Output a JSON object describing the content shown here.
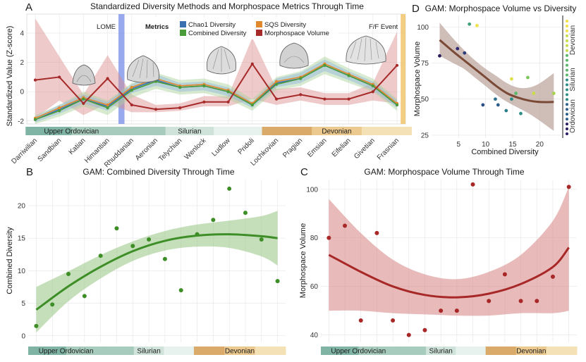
{
  "periods": [
    {
      "name": "Upper Ordovician",
      "color": "#7fb3a3"
    },
    {
      "name": "Silurian",
      "color": "#bcd8cf"
    },
    {
      "name": "Devonian",
      "color": "#d9aa6a"
    }
  ],
  "chart_data": [
    {
      "id": "A",
      "panel_label": "A",
      "type": "line",
      "title": "Standardized Diversity Methods and Morphospace Metrics Through Time",
      "xlabel": "",
      "ylabel": "Standardized Value (Z-score)",
      "ylim": [
        -2.2,
        5.3
      ],
      "yticks": [
        -2,
        0,
        2,
        4
      ],
      "grid": true,
      "legend_title": "Metrics",
      "legend_position": "top-center",
      "categories": [
        "Darriwilian",
        "Sandbian",
        "Katian",
        "Himantian",
        "Rhuddanian",
        "Aeronian",
        "Telychian",
        "Wenlock",
        "Ludlow",
        "Pridoli",
        "Lochkovian",
        "Pragian",
        "Emsian",
        "Eifelian",
        "Givetian",
        "Frasnian"
      ],
      "series": [
        {
          "name": "Chao1 Diversity",
          "color": "#3a6fb0",
          "values": [
            -1.9,
            -1.2,
            -0.5,
            -1.0,
            0.2,
            0.8,
            0.3,
            0.4,
            0.0,
            -0.9,
            0.6,
            0.9,
            1.8,
            1.1,
            0.4,
            -0.9
          ],
          "band_lower": [
            -2.1,
            -1.5,
            -0.8,
            -1.3,
            -0.1,
            0.4,
            0.0,
            0.1,
            -0.3,
            -1.1,
            0.3,
            0.6,
            1.4,
            0.8,
            0.1,
            -1.1
          ],
          "band_upper": [
            -1.7,
            -0.9,
            -0.2,
            -0.7,
            0.5,
            1.2,
            0.6,
            0.7,
            0.3,
            -0.7,
            0.9,
            1.3,
            2.2,
            1.4,
            0.7,
            -0.6
          ]
        },
        {
          "name": "SQS Diversity",
          "color": "#e0892c",
          "values": [
            -1.8,
            -1.1,
            -0.4,
            -0.9,
            0.3,
            0.9,
            0.4,
            0.5,
            0.1,
            -0.8,
            0.7,
            1.0,
            1.9,
            1.2,
            0.5,
            -0.8
          ]
        },
        {
          "name": "Combined Diversity",
          "color": "#4a9b3a",
          "values": [
            -1.9,
            -1.3,
            -0.5,
            -1.1,
            0.1,
            0.7,
            0.3,
            0.4,
            0.0,
            -0.9,
            0.5,
            0.9,
            1.8,
            1.1,
            0.4,
            -0.9
          ],
          "band_lower": [
            -2.2,
            -1.7,
            -1.0,
            -1.6,
            -0.4,
            0.2,
            -0.2,
            -0.1,
            -0.5,
            -1.3,
            0.1,
            0.4,
            1.2,
            0.6,
            0.0,
            -1.3
          ],
          "band_upper": [
            -1.6,
            -0.9,
            0.0,
            -0.6,
            0.6,
            1.3,
            0.8,
            0.9,
            0.5,
            -0.5,
            1.0,
            1.4,
            2.4,
            1.6,
            0.9,
            -0.5
          ]
        },
        {
          "name": "Morphospace Volume",
          "color": "#a72a2a",
          "values": [
            0.8,
            1.0,
            -0.8,
            0.9,
            -0.9,
            -1.2,
            -1.1,
            -0.7,
            -0.7,
            1.9,
            -0.5,
            -0.2,
            -0.5,
            -0.5,
            0.0,
            1.8
          ],
          "band_lower": [
            -1.8,
            -0.6,
            -1.6,
            -0.8,
            -1.4,
            -1.4,
            -1.3,
            -1.0,
            -1.0,
            -0.5,
            -0.9,
            -0.6,
            -0.9,
            -0.9,
            -0.6,
            -0.8
          ],
          "band_upper": [
            5.0,
            2.4,
            -0.2,
            2.5,
            -0.2,
            -0.9,
            -0.8,
            -0.3,
            -0.3,
            3.7,
            0.2,
            0.3,
            -0.1,
            -0.1,
            0.6,
            4.1
          ]
        }
      ],
      "annotations": [
        {
          "text": "LOME",
          "color": "#7f94e8",
          "between": [
            3,
            4
          ]
        },
        {
          "text": "F/F Event",
          "color": "#f1c46b",
          "between": [
            15,
            15.4
          ]
        }
      ],
      "period_bands": [
        {
          "period": "Upper Ordovician",
          "from": -0.4,
          "to": 3.4,
          "shades": [
            "#7fb3a3",
            "#a7cbbd"
          ]
        },
        {
          "period": "Silurian",
          "from": 3.4,
          "to": 9.4,
          "shades": [
            "#a7cbbd",
            "#cfe3db",
            "#e7f1ed"
          ]
        },
        {
          "period": "Devonian",
          "from": 9.4,
          "to": 15.6,
          "shades": [
            "#d9aa6a",
            "#ecc98f",
            "#f5e1b6"
          ]
        }
      ]
    },
    {
      "id": "B",
      "panel_label": "B",
      "type": "scatter",
      "title": "GAM: Combined Diversity Through Time",
      "xlabel": "",
      "ylabel": "Combined Diversity",
      "ylim": [
        -1,
        24
      ],
      "yticks": [
        0,
        5,
        10,
        15,
        20
      ],
      "grid": true,
      "point_color": "#3e8e27",
      "smooth_color": "#3e8e27",
      "band_color": "#9cc98a",
      "points": [
        [
          1,
          1.5
        ],
        [
          2,
          4.8
        ],
        [
          3,
          9.5
        ],
        [
          4,
          6.1
        ],
        [
          5,
          12.3
        ],
        [
          6,
          16.5
        ],
        [
          7,
          13.8
        ],
        [
          8,
          14.8
        ],
        [
          9,
          11.8
        ],
        [
          10,
          7.0
        ],
        [
          11,
          15.6
        ],
        [
          12,
          17.8
        ],
        [
          13,
          22.6
        ],
        [
          14,
          18.9
        ],
        [
          15,
          14.8
        ],
        [
          16,
          8.4
        ]
      ],
      "smooth": [
        [
          1,
          4.0
        ],
        [
          3,
          7.6
        ],
        [
          5,
          10.6
        ],
        [
          7,
          13.0
        ],
        [
          9,
          14.6
        ],
        [
          11,
          15.4
        ],
        [
          13,
          15.6
        ],
        [
          15,
          15.3
        ],
        [
          16,
          15.0
        ]
      ],
      "band_lower": [
        [
          1,
          0.5
        ],
        [
          3,
          5.3
        ],
        [
          5,
          8.8
        ],
        [
          7,
          11.5
        ],
        [
          9,
          13.1
        ],
        [
          11,
          13.7
        ],
        [
          13,
          13.5
        ],
        [
          15,
          12.2
        ],
        [
          16,
          10.8
        ]
      ],
      "band_upper": [
        [
          1,
          7.5
        ],
        [
          3,
          9.9
        ],
        [
          5,
          12.4
        ],
        [
          7,
          14.5
        ],
        [
          9,
          16.1
        ],
        [
          11,
          17.1
        ],
        [
          13,
          17.7
        ],
        [
          15,
          18.4
        ],
        [
          16,
          19.2
        ]
      ],
      "period_bands": [
        {
          "period": "Upper Ordovician",
          "from": 0.5,
          "to": 5.2
        },
        {
          "period": "Silurian",
          "from": 5.2,
          "to": 10.8
        },
        {
          "period": "Devonian",
          "from": 10.8,
          "to": 16.5
        }
      ]
    },
    {
      "id": "C",
      "panel_label": "C",
      "type": "scatter",
      "title": "GAM: Morphospace Volume Through Time",
      "xlabel": "",
      "ylabel": "Morphospace Volume",
      "ylim": [
        37,
        104
      ],
      "yticks": [
        40,
        60,
        80,
        100
      ],
      "grid": true,
      "point_color": "#a82828",
      "smooth_color": "#a82828",
      "band_color": "#d98c8c",
      "points": [
        [
          1,
          80
        ],
        [
          2,
          85
        ],
        [
          3,
          46
        ],
        [
          4,
          82
        ],
        [
          5,
          46
        ],
        [
          6,
          40
        ],
        [
          7,
          42
        ],
        [
          8,
          50
        ],
        [
          9,
          50
        ],
        [
          10,
          102
        ],
        [
          11,
          54
        ],
        [
          12,
          65
        ],
        [
          13,
          54
        ],
        [
          14,
          54
        ],
        [
          15,
          64
        ],
        [
          16,
          101
        ]
      ],
      "smooth": [
        [
          1,
          73
        ],
        [
          3,
          66
        ],
        [
          5,
          60
        ],
        [
          7,
          56.5
        ],
        [
          9,
          55.5
        ],
        [
          11,
          57
        ],
        [
          13,
          61
        ],
        [
          15,
          68
        ],
        [
          16,
          76
        ]
      ],
      "band_lower": [
        [
          1,
          50
        ],
        [
          3,
          50
        ],
        [
          5,
          49
        ],
        [
          7,
          48.5
        ],
        [
          9,
          48
        ],
        [
          11,
          48
        ],
        [
          13,
          49
        ],
        [
          15,
          49
        ],
        [
          16,
          50
        ]
      ],
      "band_upper": [
        [
          1,
          96
        ],
        [
          3,
          82
        ],
        [
          5,
          71
        ],
        [
          7,
          65
        ],
        [
          9,
          63
        ],
        [
          11,
          66
        ],
        [
          13,
          73
        ],
        [
          15,
          87
        ],
        [
          16,
          101
        ]
      ],
      "period_bands": [
        {
          "period": "Upper Ordovician",
          "from": 0.5,
          "to": 5.2
        },
        {
          "period": "Silurian",
          "from": 5.2,
          "to": 10.8
        },
        {
          "period": "Devonian",
          "from": 10.8,
          "to": 16.5
        }
      ]
    },
    {
      "id": "D",
      "panel_label": "D",
      "type": "scatter",
      "title": "GAM: Morphospace Volume vs Diversity",
      "xlabel": "Combined Diversity",
      "ylabel": "Morphospace Volume",
      "xlim": [
        0,
        24
      ],
      "ylim": [
        23,
        108
      ],
      "xticks": [
        5,
        10,
        15,
        20
      ],
      "yticks": [
        25,
        50,
        75,
        100
      ],
      "grid": true,
      "smooth_color": "#7a4a36",
      "band_color": "#b59a92",
      "colorbar": {
        "labels": [
          "Ordovician",
          "Silurian",
          "Devonian"
        ],
        "colors": [
          "#2b1c5e",
          "#2e5f8a",
          "#2f8f86",
          "#5bb86b",
          "#c9dc4a",
          "#f2e24a"
        ]
      },
      "points": [
        {
          "x": 1.5,
          "y": 80,
          "color": "#2b1c5e"
        },
        {
          "x": 4.8,
          "y": 85,
          "color": "#322a70"
        },
        {
          "x": 6.1,
          "y": 82,
          "color": "#2f3c7c"
        },
        {
          "x": 9.5,
          "y": 46,
          "color": "#2e4f86"
        },
        {
          "x": 12.3,
          "y": 46,
          "color": "#2e5f8a"
        },
        {
          "x": 11.8,
          "y": 50,
          "color": "#2d6f8c"
        },
        {
          "x": 13.8,
          "y": 42,
          "color": "#2b7f8b"
        },
        {
          "x": 14.8,
          "y": 50,
          "color": "#2a8c87"
        },
        {
          "x": 16.5,
          "y": 40,
          "color": "#2f8f86"
        },
        {
          "x": 7.0,
          "y": 102,
          "color": "#40a07a"
        },
        {
          "x": 15.6,
          "y": 54,
          "color": "#5bb86b"
        },
        {
          "x": 17.8,
          "y": 65,
          "color": "#7dc75a"
        },
        {
          "x": 22.6,
          "y": 54,
          "color": "#a6d24d"
        },
        {
          "x": 18.9,
          "y": 54,
          "color": "#c9dc4a"
        },
        {
          "x": 14.8,
          "y": 64,
          "color": "#e0df48"
        },
        {
          "x": 8.4,
          "y": 101,
          "color": "#f2e24a"
        }
      ],
      "smooth": [
        [
          1.5,
          91
        ],
        [
          4,
          83
        ],
        [
          6,
          77
        ],
        [
          8,
          71
        ],
        [
          10,
          65
        ],
        [
          12,
          59
        ],
        [
          14,
          54
        ],
        [
          16,
          51
        ],
        [
          18,
          49
        ],
        [
          20,
          48
        ],
        [
          22.6,
          48
        ]
      ],
      "band_lower": [
        [
          1.5,
          80
        ],
        [
          4,
          75
        ],
        [
          6,
          71
        ],
        [
          8,
          65
        ],
        [
          10,
          59
        ],
        [
          12,
          53
        ],
        [
          14,
          48
        ],
        [
          16,
          44
        ],
        [
          18,
          40
        ],
        [
          20,
          35
        ],
        [
          22.6,
          28
        ]
      ],
      "band_upper": [
        [
          1.5,
          103
        ],
        [
          4,
          92
        ],
        [
          6,
          84
        ],
        [
          8,
          77
        ],
        [
          10,
          71
        ],
        [
          12,
          66
        ],
        [
          14,
          61
        ],
        [
          16,
          58
        ],
        [
          18,
          58
        ],
        [
          20,
          61
        ],
        [
          22.6,
          68
        ]
      ]
    }
  ]
}
